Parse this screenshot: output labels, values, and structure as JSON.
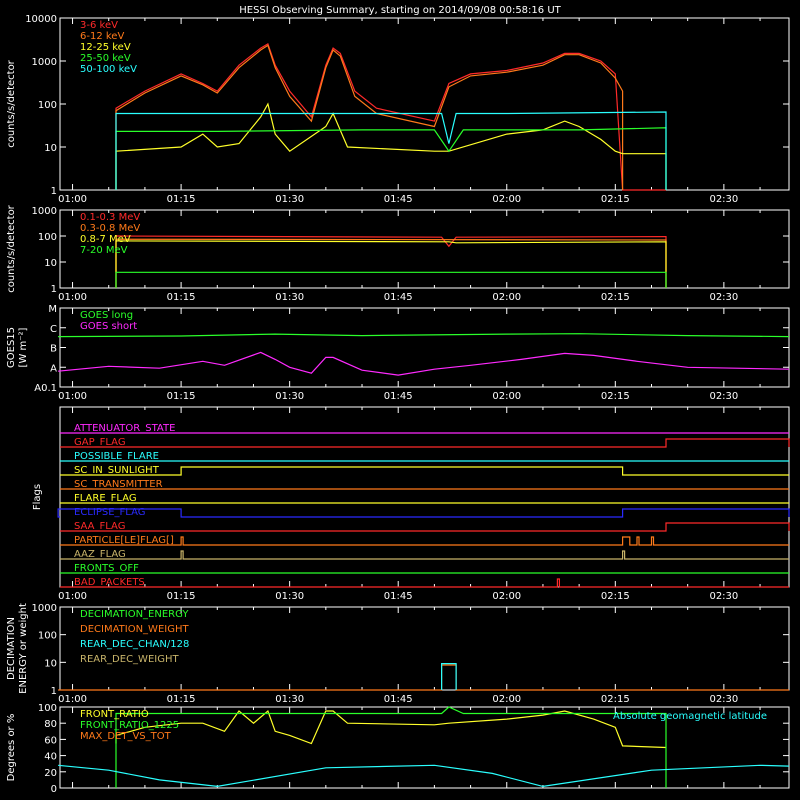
{
  "title": "HESSI Observing Summary, starting on 2014/09/08 00:58:16 UT",
  "time_ticks": [
    "01:00",
    "01:15",
    "01:30",
    "01:45",
    "02:00",
    "02:15",
    "02:30"
  ],
  "colors": {
    "red": "#ff2a2a",
    "orange": "#ff7a1a",
    "yellow": "#ffff2a",
    "green": "#2aff2a",
    "cyan": "#2affff",
    "magenta": "#ff2aff",
    "blue": "#2a2aff",
    "olive": "#c8b46a",
    "white": "#ffffff"
  },
  "chart_data": [
    {
      "type": "line",
      "id": "panel-counts",
      "ylabel": "counts/s/detector",
      "ylog": true,
      "ylim": [
        1,
        10000
      ],
      "yticks": [
        "1",
        "10",
        "100",
        "1000",
        "10000"
      ],
      "xlim": [
        "00:58:16",
        "02:39"
      ],
      "series": [
        {
          "name": "3-6 keV",
          "color": "#ff2a2a",
          "x": [
            "01:06",
            "01:06",
            "01:10",
            "01:15",
            "01:18",
            "01:20",
            "01:23",
            "01:26",
            "01:27",
            "01:28",
            "01:30",
            "01:33",
            "01:35",
            "01:36",
            "01:37",
            "01:39",
            "01:42",
            "01:50",
            "01:52",
            "01:55",
            "02:00",
            "02:05",
            "02:08",
            "02:10",
            "02:13",
            "02:15",
            "02:16",
            "02:16",
            "02:22"
          ],
          "y": [
            1,
            80,
            200,
            500,
            300,
            200,
            800,
            2000,
            2500,
            800,
            200,
            50,
            800,
            2000,
            1500,
            200,
            80,
            40,
            300,
            500,
            600,
            900,
            1500,
            1500,
            1000,
            500,
            1,
            1,
            1
          ]
        },
        {
          "name": "6-12 keV",
          "color": "#ff7a1a",
          "x": [
            "01:06",
            "01:06",
            "01:10",
            "01:15",
            "01:18",
            "01:20",
            "01:23",
            "01:26",
            "01:27",
            "01:28",
            "01:30",
            "01:33",
            "01:35",
            "01:36",
            "01:37",
            "01:39",
            "01:42",
            "01:50",
            "01:52",
            "01:55",
            "02:00",
            "02:05",
            "02:08",
            "02:10",
            "02:13",
            "02:15",
            "02:16",
            "02:16"
          ],
          "y": [
            1,
            70,
            180,
            450,
            280,
            180,
            700,
            1800,
            2300,
            700,
            150,
            40,
            700,
            1800,
            1300,
            150,
            60,
            30,
            250,
            450,
            550,
            800,
            1400,
            1400,
            900,
            400,
            200,
            1
          ]
        },
        {
          "name": "12-25 keV",
          "color": "#ffff2a",
          "x": [
            "01:06",
            "01:06",
            "01:15",
            "01:18",
            "01:20",
            "01:23",
            "01:26",
            "01:27",
            "01:28",
            "01:30",
            "01:35",
            "01:36",
            "01:38",
            "01:50",
            "01:52",
            "02:00",
            "02:05",
            "02:08",
            "02:10",
            "02:13",
            "02:15",
            "02:16",
            "02:22",
            "02:22"
          ],
          "y": [
            1,
            8,
            10,
            20,
            10,
            12,
            50,
            100,
            20,
            8,
            30,
            60,
            10,
            8,
            8,
            20,
            25,
            40,
            30,
            15,
            8,
            7,
            7,
            1
          ]
        },
        {
          "name": "25-50 keV",
          "color": "#2aff2a",
          "x": [
            "01:06",
            "01:06",
            "01:20",
            "01:40",
            "01:50",
            "01:52",
            "01:54",
            "01:55",
            "02:10",
            "02:22",
            "02:22"
          ],
          "y": [
            1,
            23,
            23,
            25,
            25,
            8,
            25,
            25,
            25,
            28,
            1
          ]
        },
        {
          "name": "50-100 keV",
          "color": "#2affff",
          "x": [
            "01:06",
            "01:06",
            "01:30",
            "01:51",
            "01:52",
            "01:53",
            "02:00",
            "02:22",
            "02:22"
          ],
          "y": [
            1,
            60,
            60,
            60,
            12,
            60,
            60,
            65,
            1
          ]
        }
      ]
    },
    {
      "type": "line",
      "id": "panel-gamma",
      "ylabel": "counts/s/detector",
      "ylog": true,
      "ylim": [
        1,
        1000
      ],
      "yticks": [
        "1",
        "10",
        "100",
        "1000"
      ],
      "series": [
        {
          "name": "0.1-0.3 MeV",
          "color": "#ff2a2a",
          "x": [
            "01:06",
            "01:06",
            "01:51",
            "01:52",
            "01:53",
            "02:22",
            "02:22"
          ],
          "y": [
            1,
            100,
            90,
            40,
            90,
            95,
            1
          ]
        },
        {
          "name": "0.3-0.8 MeV",
          "color": "#ff7a1a",
          "x": [
            "01:06",
            "01:06",
            "02:22",
            "02:22"
          ],
          "y": [
            1,
            75,
            70,
            1
          ]
        },
        {
          "name": "0.8-7 MeV",
          "color": "#ffff2a",
          "x": [
            "01:06",
            "01:06",
            "01:52",
            "01:53",
            "02:22",
            "02:22"
          ],
          "y": [
            1,
            65,
            60,
            55,
            60,
            1
          ]
        },
        {
          "name": "7-20 MeV",
          "color": "#2aff2a",
          "x": [
            "01:06",
            "01:06",
            "02:22",
            "02:22"
          ],
          "y": [
            1,
            4,
            4,
            1
          ]
        }
      ]
    },
    {
      "type": "line",
      "id": "panel-goes",
      "ylabel": "GOES15",
      "ylabel2": "[W m⁻²]",
      "ylim": [
        0,
        4
      ],
      "yticks": [
        "A0.1",
        "A",
        "B",
        "C",
        "M"
      ],
      "series": [
        {
          "name": "GOES long",
          "color": "#2aff2a",
          "x": [
            "00:58",
            "01:15",
            "01:28",
            "01:40",
            "02:00",
            "02:10",
            "02:25",
            "02:39"
          ],
          "y": [
            2.55,
            2.58,
            2.68,
            2.6,
            2.68,
            2.7,
            2.6,
            2.55
          ]
        },
        {
          "name": "GOES short",
          "color": "#ff2aff",
          "x": [
            "00:58",
            "01:05",
            "01:12",
            "01:18",
            "01:21",
            "01:26",
            "01:28",
            "01:30",
            "01:33",
            "01:35",
            "01:36",
            "01:40",
            "01:45",
            "01:50",
            "01:55",
            "02:02",
            "02:08",
            "02:12",
            "02:18",
            "02:25",
            "02:39"
          ],
          "y": [
            0.8,
            1.05,
            0.95,
            1.3,
            1.1,
            1.75,
            1.4,
            1.0,
            0.7,
            1.5,
            1.5,
            0.85,
            0.6,
            0.9,
            1.1,
            1.4,
            1.7,
            1.6,
            1.3,
            1.0,
            0.9
          ]
        }
      ]
    },
    {
      "type": "line",
      "id": "panel-decimation",
      "ylabel": "DECIMATION",
      "ylabel2": "ENERGY or weight",
      "ylim": [
        1,
        1000
      ],
      "ylog": true,
      "yticks": [
        "1",
        "10",
        "100",
        "1000"
      ],
      "series": [
        {
          "name": "DECIMATION_ENERGY",
          "color": "#2aff2a",
          "x": [],
          "y": []
        },
        {
          "name": "DECIMATION_WEIGHT",
          "color": "#ff7a1a",
          "x": [
            "00:58",
            "01:51",
            "01:51",
            "01:53",
            "01:53",
            "02:39"
          ],
          "y": [
            1,
            1,
            8,
            8,
            1,
            1
          ]
        },
        {
          "name": "REAR_DEC_CHAN/128",
          "color": "#2affff",
          "x": [
            "01:51",
            "01:51",
            "01:53",
            "01:53"
          ],
          "y": [
            1,
            9,
            9,
            1
          ]
        },
        {
          "name": "REAR_DEC_WEIGHT",
          "color": "#c8b46a",
          "x": [],
          "y": []
        }
      ]
    },
    {
      "type": "line",
      "id": "panel-ratio",
      "ylabel": "Degrees or %",
      "ylim": [
        0,
        100
      ],
      "yticks": [
        "0",
        "20",
        "40",
        "60",
        "80",
        "100"
      ],
      "annotation": "Absolute geomagnetic latitude",
      "series": [
        {
          "name": "FRONT_RATIO",
          "color": "#ffff2a",
          "x": [
            "01:06",
            "01:06",
            "01:10",
            "01:15",
            "01:18",
            "01:21",
            "01:23",
            "01:25",
            "01:27",
            "01:28",
            "01:30",
            "01:33",
            "01:35",
            "01:36",
            "01:38",
            "01:50",
            "01:52",
            "02:00",
            "02:05",
            "02:08",
            "02:12",
            "02:15",
            "02:16",
            "02:22"
          ],
          "y": [
            55,
            65,
            75,
            80,
            80,
            70,
            95,
            80,
            95,
            70,
            65,
            55,
            95,
            95,
            80,
            78,
            80,
            85,
            90,
            95,
            85,
            75,
            52,
            50
          ]
        },
        {
          "name": "FRONT_RATIO_1225",
          "color": "#2aff2a",
          "x": [
            "01:06",
            "01:06",
            "01:51",
            "01:52",
            "01:54",
            "02:22",
            "02:22"
          ],
          "y": [
            0,
            92,
            92,
            100,
            92,
            92,
            0
          ]
        },
        {
          "name": "MAX_DET_VS_TOT",
          "color": "#ff7a1a",
          "x": [],
          "y": []
        },
        {
          "name": "Absolute geomagnetic latitude",
          "color": "#2affff",
          "x": [
            "00:58",
            "01:05",
            "01:12",
            "01:20",
            "01:35",
            "01:50",
            "01:58",
            "02:05",
            "02:20",
            "02:35",
            "02:39"
          ],
          "y": [
            28,
            22,
            10,
            2,
            25,
            28,
            18,
            2,
            22,
            28,
            27
          ]
        }
      ]
    }
  ],
  "flags": {
    "ylabel": "Flags",
    "items": [
      {
        "name": "ATTENUATOR_STATE",
        "color": "#ff2aff",
        "segments": []
      },
      {
        "name": "GAP_FLAG",
        "color": "#ff2a2a",
        "segments": [
          [
            "02:22",
            "02:39"
          ]
        ]
      },
      {
        "name": "POSSIBLE_FLARE",
        "color": "#2affff",
        "segments": []
      },
      {
        "name": "SC_IN_SUNLIGHT",
        "color": "#ffff2a",
        "segments": [
          [
            "01:15",
            "02:16"
          ]
        ]
      },
      {
        "name": "SC_TRANSMITTER",
        "color": "#ff7a1a",
        "segments": []
      },
      {
        "name": "FLARE_FLAG",
        "color": "#ffff2a",
        "segments": []
      },
      {
        "name": "ECLIPSE_FLAG",
        "color": "#2a2aff",
        "segments": [
          [
            "00:58",
            "01:15"
          ],
          [
            "02:16",
            "02:39"
          ]
        ]
      },
      {
        "name": "SAA_FLAG",
        "color": "#ff2a2a",
        "segments": [
          [
            "02:22",
            "02:39"
          ]
        ]
      },
      {
        "name": "PARTICLE[LE]FLAG[]",
        "color": "#ff7a1a",
        "segments": [
          [
            "01:15",
            "01:15"
          ],
          [
            "02:16",
            "02:17"
          ],
          [
            "02:18",
            "02:18"
          ],
          [
            "02:20",
            "02:20"
          ]
        ]
      },
      {
        "name": "AAZ_FLAG",
        "color": "#c8b46a",
        "segments": [
          [
            "01:15",
            "01:15"
          ],
          [
            "02:16",
            "02:16"
          ]
        ]
      },
      {
        "name": "FRONTS_OFF",
        "color": "#2aff2a",
        "segments": []
      },
      {
        "name": "BAD_PACKETS",
        "color": "#ff2a2a",
        "segments": [
          [
            "02:07",
            "02:07"
          ]
        ]
      }
    ]
  }
}
